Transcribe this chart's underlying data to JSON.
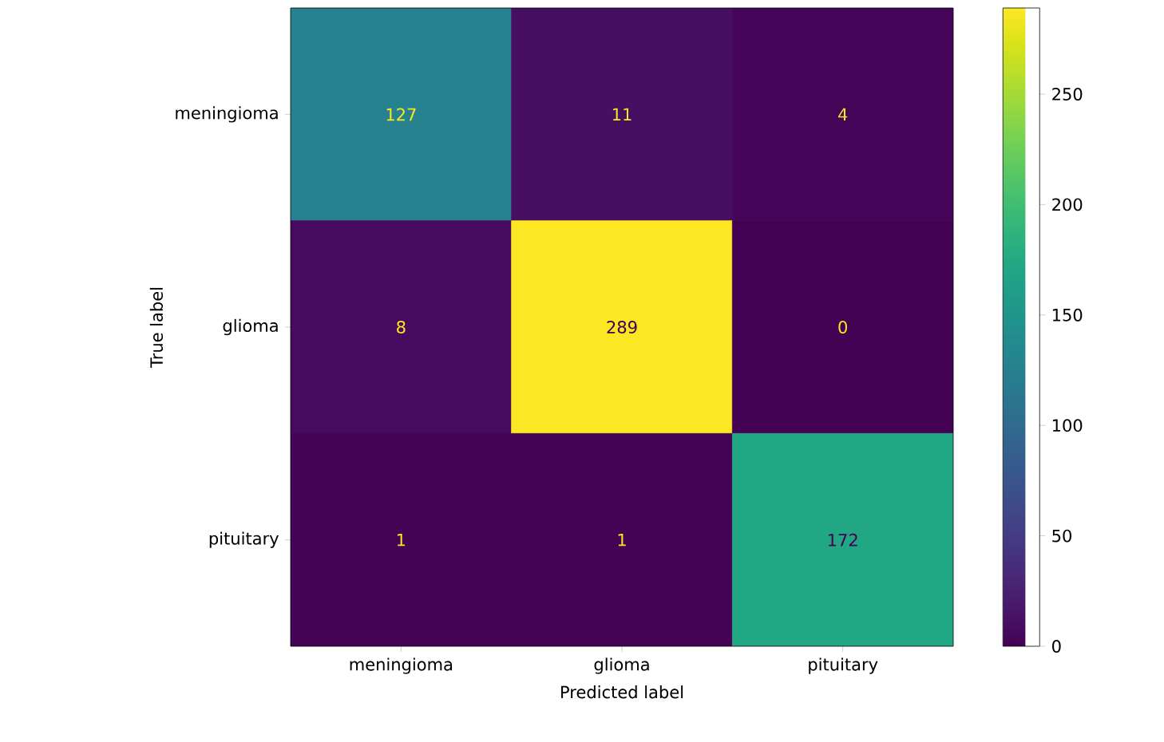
{
  "chart_data": {
    "type": "heatmap",
    "xlabel": "Predicted label",
    "ylabel": "True label",
    "categories": [
      "meningioma",
      "glioma",
      "pituitary"
    ],
    "y_categories": [
      "meningioma",
      "glioma",
      "pituitary"
    ],
    "cells": [
      [
        127,
        11,
        4
      ],
      [
        8,
        289,
        0
      ],
      [
        1,
        1,
        172
      ]
    ],
    "clim": [
      0,
      289
    ],
    "cticks": [
      0,
      50,
      100,
      150,
      200,
      250
    ],
    "data_labels": true
  }
}
